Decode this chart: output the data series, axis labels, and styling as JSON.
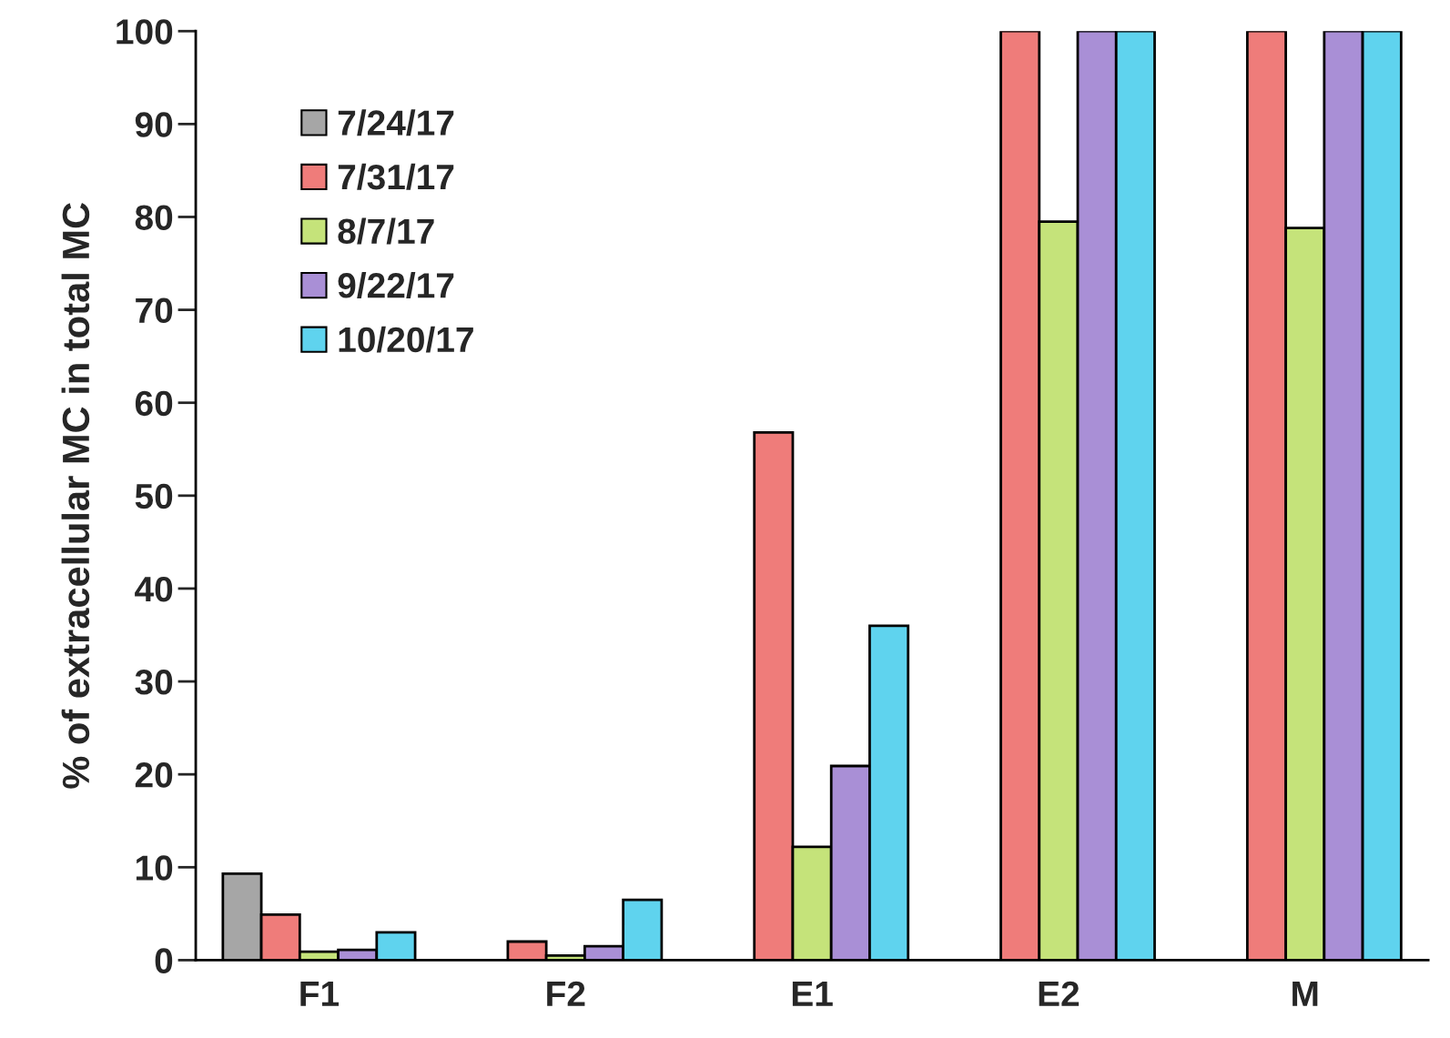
{
  "chart_data": {
    "type": "bar",
    "ylabel": "% of extracellular MC in total MC",
    "categories": [
      "F1",
      "F2",
      "E1",
      "E2",
      "M"
    ],
    "series": [
      {
        "name": "7/24/17",
        "color": "#a6a6a6",
        "values": [
          9.3,
          null,
          null,
          null,
          null
        ]
      },
      {
        "name": "7/31/17",
        "color": "#ef7c7a",
        "values": [
          4.9,
          2.0,
          56.8,
          100,
          100
        ]
      },
      {
        "name": "8/7/17",
        "color": "#c5e37a",
        "values": [
          0.9,
          0.5,
          12.2,
          79.5,
          78.8
        ]
      },
      {
        "name": "9/22/17",
        "color": "#a98fd6",
        "values": [
          1.1,
          1.5,
          20.9,
          100,
          100
        ]
      },
      {
        "name": "10/20/17",
        "color": "#5fd3ee",
        "values": [
          3.0,
          6.5,
          36.0,
          100,
          100
        ]
      }
    ],
    "ylim": [
      0,
      100
    ],
    "yticks": [
      0,
      10,
      20,
      30,
      40,
      50,
      60,
      70,
      80,
      90,
      100
    ],
    "grid": false,
    "legend": "top left"
  }
}
